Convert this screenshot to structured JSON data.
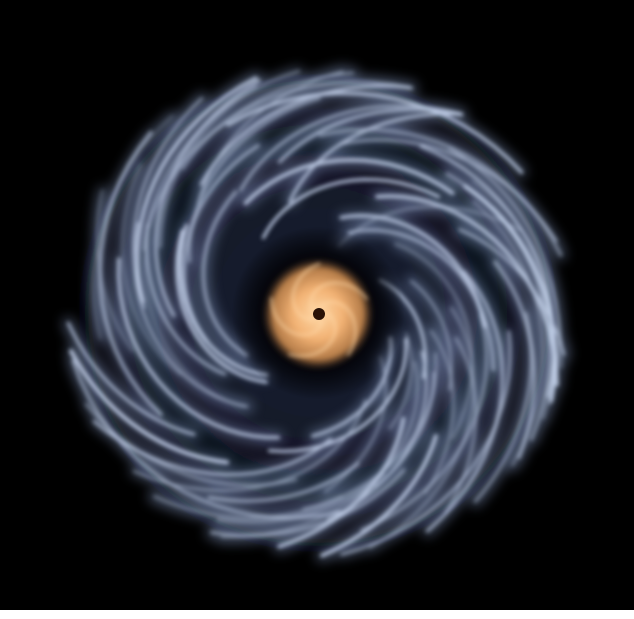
{
  "scene": {
    "subject": "spiral-galaxy",
    "background_color": "#000000",
    "frame_color": "#ffffff",
    "disk_color": "#15192a",
    "arm_color": "#c5d3ec",
    "arm_glow_color": "#7d8fb6",
    "core_color": "#f2b274",
    "core_highlight_color": "#ffd9a8",
    "core_center_color": "#2a1206",
    "spin_direction": "clockwise"
  }
}
